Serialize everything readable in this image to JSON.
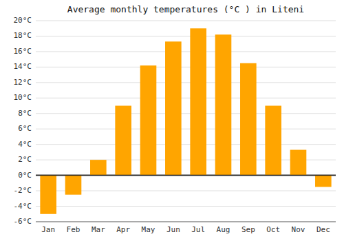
{
  "chart_data": {
    "type": "bar",
    "title": "Average monthly temperatures (°C ) in Liteni",
    "categories": [
      "Jan",
      "Feb",
      "Mar",
      "Apr",
      "May",
      "Jun",
      "Jul",
      "Aug",
      "Sep",
      "Oct",
      "Nov",
      "Dec"
    ],
    "values": [
      -5.0,
      -2.5,
      2.0,
      9.0,
      14.2,
      17.3,
      19.0,
      18.2,
      14.5,
      9.0,
      3.3,
      -1.5
    ],
    "color": "#FFA500",
    "ylim": [
      -6,
      20
    ],
    "yticks": [
      {
        "value": -6,
        "label": "-6°C"
      },
      {
        "value": -4,
        "label": "-4°C"
      },
      {
        "value": -2,
        "label": "-2°C"
      },
      {
        "value": 0,
        "label": "0°C"
      },
      {
        "value": 2,
        "label": "2°C"
      },
      {
        "value": 4,
        "label": "4°C"
      },
      {
        "value": 6,
        "label": "6°C"
      },
      {
        "value": 8,
        "label": "8°C"
      },
      {
        "value": 10,
        "label": "10°C"
      },
      {
        "value": 12,
        "label": "12°C"
      },
      {
        "value": 14,
        "label": "14°C"
      },
      {
        "value": 16,
        "label": "16°C"
      },
      {
        "value": 18,
        "label": "18°C"
      },
      {
        "value": 20,
        "label": "20°C"
      }
    ],
    "grid": true
  }
}
